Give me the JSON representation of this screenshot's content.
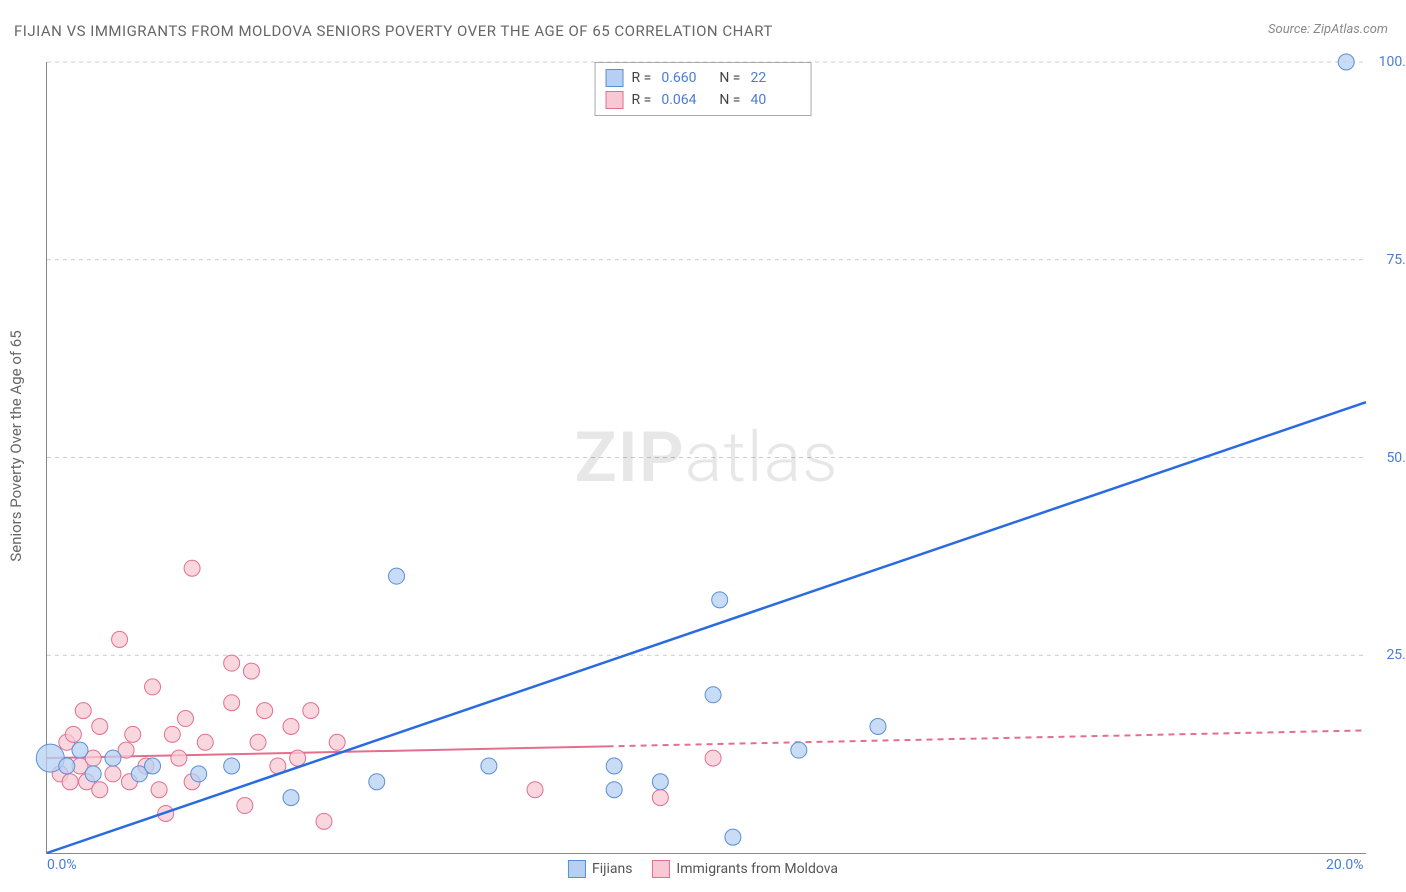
{
  "title": "FIJIAN VS IMMIGRANTS FROM MOLDOVA SENIORS POVERTY OVER THE AGE OF 65 CORRELATION CHART",
  "source": "Source: ZipAtlas.com",
  "y_axis_title": "Seniors Poverty Over the Age of 65",
  "watermark_bold": "ZIP",
  "watermark_light": "atlas",
  "chart": {
    "type": "scatter",
    "xlim": [
      0,
      20
    ],
    "ylim": [
      0,
      100
    ],
    "x_ticks": [
      {
        "v": 0,
        "label": "0.0%"
      },
      {
        "v": 20,
        "label": "20.0%"
      }
    ],
    "y_ticks": [
      {
        "v": 25,
        "label": "25.0%"
      },
      {
        "v": 50,
        "label": "50.0%"
      },
      {
        "v": 75,
        "label": "75.0%"
      },
      {
        "v": 100,
        "label": "100.0%"
      }
    ],
    "grid_color": "#cccccc",
    "axis_color": "#888888",
    "background_color": "#ffffff",
    "tick_label_color": "#4a7dd6"
  },
  "series": {
    "fijians": {
      "label": "Fijians",
      "fill": "#b7d0f2",
      "stroke": "#5a8fd6",
      "stroke_width": 1,
      "marker_radius": 8,
      "line_color": "#2b6be0",
      "line_width": 2.5,
      "line_dash": "none",
      "R_label": "R =",
      "R": "0.660",
      "N_label": "N =",
      "N": "22",
      "trend": {
        "x0": 0,
        "y0": 0,
        "x1": 20,
        "y1": 57
      },
      "points": [
        {
          "x": 0.05,
          "y": 12,
          "r": 14
        },
        {
          "x": 0.3,
          "y": 11
        },
        {
          "x": 0.5,
          "y": 13
        },
        {
          "x": 0.7,
          "y": 10
        },
        {
          "x": 1.0,
          "y": 12
        },
        {
          "x": 1.4,
          "y": 10
        },
        {
          "x": 1.6,
          "y": 11
        },
        {
          "x": 2.3,
          "y": 10
        },
        {
          "x": 2.8,
          "y": 11
        },
        {
          "x": 3.7,
          "y": 7
        },
        {
          "x": 5.0,
          "y": 9
        },
        {
          "x": 5.3,
          "y": 35
        },
        {
          "x": 6.7,
          "y": 11
        },
        {
          "x": 8.6,
          "y": 8
        },
        {
          "x": 8.6,
          "y": 11
        },
        {
          "x": 9.3,
          "y": 9
        },
        {
          "x": 10.1,
          "y": 20
        },
        {
          "x": 10.2,
          "y": 32
        },
        {
          "x": 10.4,
          "y": 2
        },
        {
          "x": 11.4,
          "y": 13
        },
        {
          "x": 12.6,
          "y": 16
        },
        {
          "x": 19.7,
          "y": 100
        }
      ]
    },
    "moldova": {
      "label": "Immigrants from Moldova",
      "fill": "#f7c9d4",
      "stroke": "#e36f8f",
      "stroke_width": 1,
      "marker_radius": 8,
      "line_color": "#e36f8f",
      "line_width": 2,
      "line_dash_solid_until_x": 8.5,
      "line_dash": "6,5",
      "R_label": "R =",
      "R": "0.064",
      "N_label": "N =",
      "N": "40",
      "trend": {
        "x0": 0,
        "y0": 12,
        "x1": 20,
        "y1": 15.5
      },
      "points": [
        {
          "x": 0.2,
          "y": 10
        },
        {
          "x": 0.3,
          "y": 14
        },
        {
          "x": 0.35,
          "y": 9
        },
        {
          "x": 0.4,
          "y": 15
        },
        {
          "x": 0.5,
          "y": 11
        },
        {
          "x": 0.55,
          "y": 18
        },
        {
          "x": 0.6,
          "y": 9
        },
        {
          "x": 0.7,
          "y": 12
        },
        {
          "x": 0.8,
          "y": 8
        },
        {
          "x": 0.8,
          "y": 16
        },
        {
          "x": 1.0,
          "y": 10
        },
        {
          "x": 1.1,
          "y": 27
        },
        {
          "x": 1.2,
          "y": 13
        },
        {
          "x": 1.25,
          "y": 9
        },
        {
          "x": 1.3,
          "y": 15
        },
        {
          "x": 1.5,
          "y": 11
        },
        {
          "x": 1.6,
          "y": 21
        },
        {
          "x": 1.7,
          "y": 8
        },
        {
          "x": 1.8,
          "y": 5
        },
        {
          "x": 1.9,
          "y": 15
        },
        {
          "x": 2.0,
          "y": 12
        },
        {
          "x": 2.1,
          "y": 17
        },
        {
          "x": 2.2,
          "y": 9
        },
        {
          "x": 2.2,
          "y": 36
        },
        {
          "x": 2.4,
          "y": 14
        },
        {
          "x": 2.8,
          "y": 19
        },
        {
          "x": 2.8,
          "y": 24
        },
        {
          "x": 3.0,
          "y": 6
        },
        {
          "x": 3.1,
          "y": 23
        },
        {
          "x": 3.2,
          "y": 14
        },
        {
          "x": 3.3,
          "y": 18
        },
        {
          "x": 3.5,
          "y": 11
        },
        {
          "x": 3.7,
          "y": 16
        },
        {
          "x": 3.8,
          "y": 12
        },
        {
          "x": 4.0,
          "y": 18
        },
        {
          "x": 4.2,
          "y": 4
        },
        {
          "x": 4.4,
          "y": 14
        },
        {
          "x": 7.4,
          "y": 8
        },
        {
          "x": 9.3,
          "y": 7
        },
        {
          "x": 10.1,
          "y": 12
        }
      ]
    }
  }
}
